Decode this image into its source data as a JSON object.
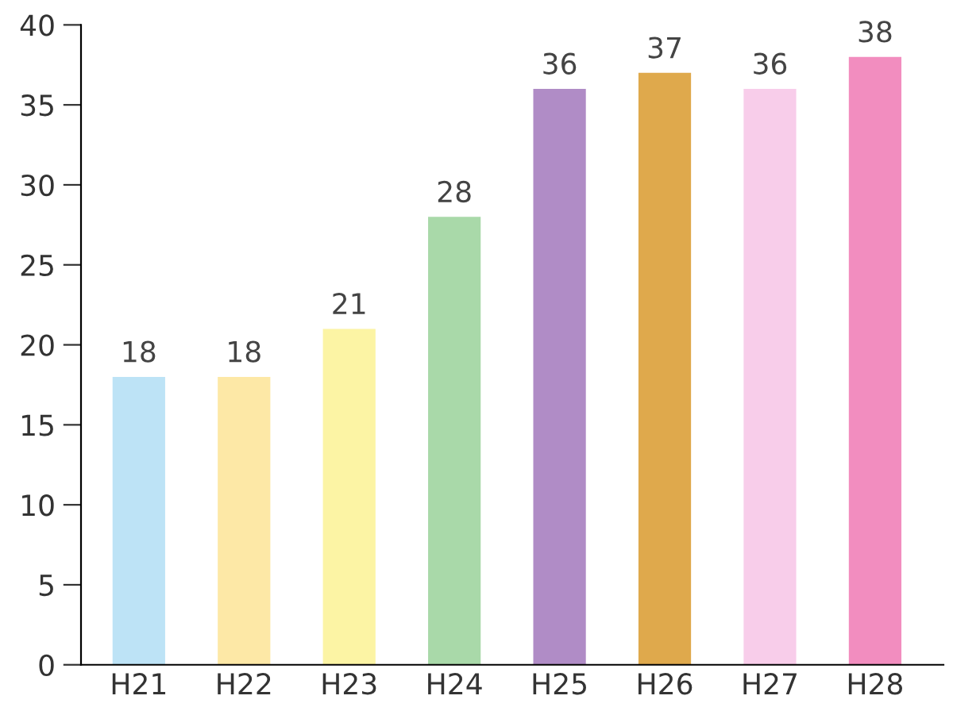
{
  "chart_data": {
    "type": "bar",
    "categories": [
      "H21",
      "H22",
      "H23",
      "H24",
      "H25",
      "H26",
      "H27",
      "H28"
    ],
    "values": [
      18,
      18,
      21,
      28,
      36,
      37,
      36,
      38
    ],
    "colors": [
      "#bde3f6",
      "#fde8a6",
      "#fcf4a4",
      "#a9d9a9",
      "#b08cc6",
      "#dfa94c",
      "#f8cdea",
      "#f28dbf"
    ],
    "ylim": [
      0,
      40
    ],
    "yticks": [
      0,
      5,
      10,
      15,
      20,
      25,
      30,
      35,
      40
    ],
    "data_labels": true,
    "grid": false
  }
}
